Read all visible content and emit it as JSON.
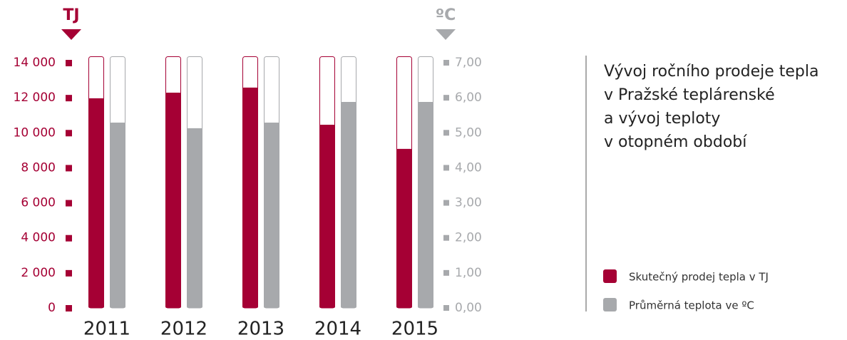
{
  "chart_data": {
    "type": "bar",
    "title": [
      "Vývoj ročního prodeje tepla",
      "v Pražské teplárenské",
      "a vývoj teploty",
      "v otopném období"
    ],
    "y_axis_label": "TJ",
    "y2_axis_label": "ºC",
    "categories": [
      "2011",
      "2012",
      "2013",
      "2014",
      "2015"
    ],
    "series": [
      {
        "name": "Skutečný prodej tepla v TJ",
        "color": "#a50034",
        "values": [
          11970,
          12290,
          12580,
          10460,
          9080
        ]
      },
      {
        "name": "Průměrná teplota ve ºC",
        "color": "#a7a9ac",
        "axis": "y2",
        "values": [
          5.29,
          5.13,
          5.29,
          5.88,
          5.88
        ]
      }
    ],
    "ylim": [
      0,
      14000
    ],
    "yticks": [
      0,
      {
        "value": 2000,
        "label": "2 000"
      },
      {
        "value": 4000,
        "label": "4 000"
      },
      {
        "value": 6000,
        "label": "6 000"
      },
      {
        "value": 8000,
        "label": "8 000"
      },
      {
        "value": 10000,
        "label": "10 000"
      },
      {
        "value": 12000,
        "label": "12 000"
      },
      {
        "value": 14000,
        "label": "14 000"
      }
    ],
    "y2lim": [
      0,
      7
    ],
    "y2ticks": [
      {
        "value": 0,
        "label": "0,00"
      },
      {
        "value": 1,
        "label": "1,00"
      },
      {
        "value": 2,
        "label": "2,00"
      },
      {
        "value": 3,
        "label": "3,00"
      },
      {
        "value": 4,
        "label": "4,00"
      },
      {
        "value": 5,
        "label": "5,00"
      },
      {
        "value": 6,
        "label": "6,00"
      },
      {
        "value": 7,
        "label": "7,00"
      }
    ]
  }
}
